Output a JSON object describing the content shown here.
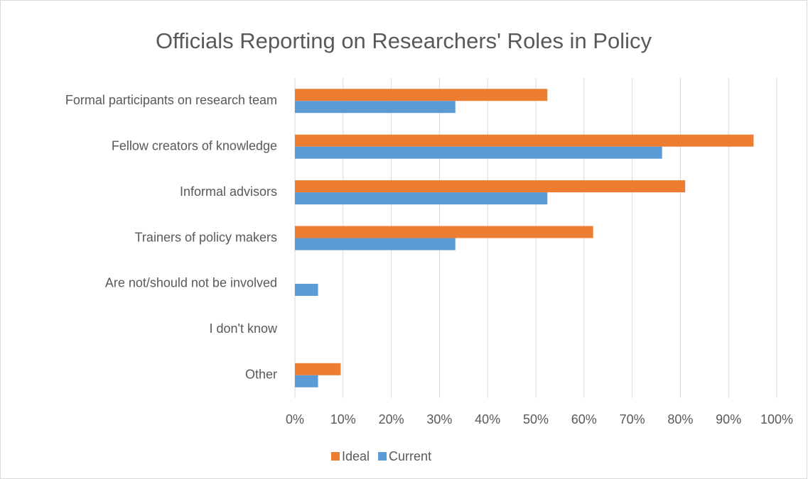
{
  "chart_data": {
    "type": "hbar",
    "title": "Officials Reporting on Researchers' Roles in Policy",
    "categories": [
      "Formal participants on research team",
      "Fellow creators of knowledge",
      "Informal advisors",
      "Trainers of policy makers",
      "Are not/should not be involved",
      "I don't know",
      "Other"
    ],
    "series": [
      {
        "name": "Ideal",
        "color": "#ED7D31",
        "values": [
          52.4,
          95.2,
          81,
          61.9,
          0,
          0,
          9.5
        ]
      },
      {
        "name": "Current",
        "color": "#5B9BD5",
        "values": [
          33.3,
          76.2,
          52.4,
          33.3,
          4.8,
          0,
          4.8
        ]
      }
    ],
    "xlim": [
      0,
      100
    ],
    "xticks": [
      {
        "value": 0,
        "label": "0%"
      },
      {
        "value": 10,
        "label": "10%"
      },
      {
        "value": 20,
        "label": "20%"
      },
      {
        "value": 30,
        "label": "30%"
      },
      {
        "value": 40,
        "label": "40%"
      },
      {
        "value": 50,
        "label": "50%"
      },
      {
        "value": 60,
        "label": "60%"
      },
      {
        "value": 70,
        "label": "70%"
      },
      {
        "value": 80,
        "label": "80%"
      },
      {
        "value": 90,
        "label": "90%"
      },
      {
        "value": 100,
        "label": "100%"
      }
    ],
    "grid": true,
    "legend": "bottom"
  }
}
